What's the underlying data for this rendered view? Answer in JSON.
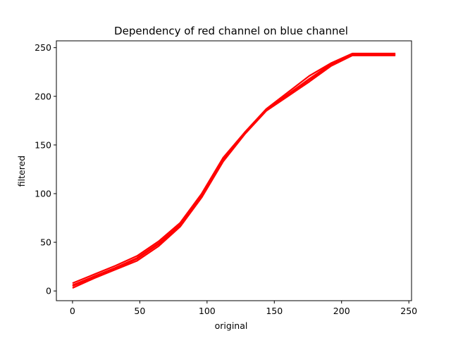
{
  "chart_data": {
    "type": "line",
    "title": "Dependency of red channel on blue channel",
    "xlabel": "original",
    "ylabel": "filtered",
    "xlim": [
      -12,
      252
    ],
    "ylim": [
      -10,
      257
    ],
    "xticks": [
      0,
      50,
      100,
      150,
      200,
      250
    ],
    "yticks": [
      0,
      50,
      100,
      150,
      200,
      250
    ],
    "grid": false,
    "color": "#ff0000",
    "series": [
      {
        "x": [
          0,
          16,
          32,
          48,
          64,
          80,
          96,
          112,
          128,
          144,
          160,
          176,
          192,
          208,
          224,
          240
        ],
        "y": [
          6,
          15,
          24,
          34,
          49,
          68,
          98,
          135,
          162,
          186,
          202,
          218,
          233,
          243,
          243,
          243
        ]
      },
      {
        "x": [
          0,
          16,
          32,
          48,
          64,
          80,
          96,
          112,
          128,
          144,
          160,
          176,
          192,
          208,
          224,
          240
        ],
        "y": [
          3,
          13,
          22,
          31,
          46,
          66,
          96,
          133,
          161,
          185,
          200,
          215,
          231,
          242,
          242,
          242
        ]
      },
      {
        "x": [
          0,
          16,
          32,
          48,
          64,
          80,
          96,
          112,
          128,
          144,
          160,
          176,
          192,
          208,
          224,
          240
        ],
        "y": [
          8,
          17,
          26,
          36,
          51,
          70,
          100,
          137,
          163,
          187,
          204,
          221,
          234,
          244,
          244,
          244
        ]
      },
      {
        "x": [
          0,
          16,
          32,
          48,
          64,
          80,
          96,
          112,
          128,
          144,
          160,
          176,
          192,
          208,
          224,
          240
        ],
        "y": [
          5,
          14,
          23,
          33,
          48,
          67,
          97,
          134,
          162,
          186,
          201,
          217,
          232,
          243,
          243,
          243
        ]
      }
    ]
  }
}
